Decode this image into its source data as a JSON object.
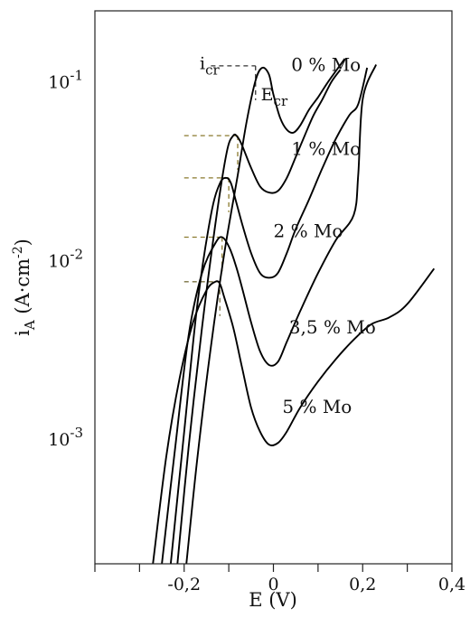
{
  "chart_data": {
    "type": "line",
    "xlabel": "E (V)",
    "ylabel": "iₐ",
    "y_axis_label": {
      "main": "i",
      "sub": "A",
      "unit_open": " (A·cm",
      "unit_sup": "-2",
      "unit_close": ")"
    },
    "x_scale": "linear",
    "y_scale": "log",
    "xlim": [
      -0.4,
      0.4
    ],
    "ylim": [
      0.0002,
      0.25
    ],
    "x_ticks": [
      -0.4,
      -0.3,
      -0.2,
      -0.1,
      0,
      0.1,
      0.2,
      0.3,
      0.4
    ],
    "x_tick_labels": [
      {
        "value": -0.2,
        "label": "-0,2"
      },
      {
        "value": 0,
        "label": "0"
      },
      {
        "value": 0.2,
        "label": "0,2"
      },
      {
        "value": 0.4,
        "label": "0,4"
      }
    ],
    "y_tick_labels": [
      {
        "value": 0.1,
        "base": "10",
        "exp": "-1"
      },
      {
        "value": 0.01,
        "base": "10",
        "exp": "-2"
      },
      {
        "value": 0.001,
        "base": "10",
        "exp": "-3"
      }
    ],
    "grid": false,
    "legend": "none",
    "series": [
      {
        "name": "0 % Mo",
        "x": [
          -0.195,
          -0.17,
          -0.14,
          -0.11,
          -0.08,
          -0.06,
          -0.04,
          -0.025,
          -0.01,
          0.0,
          0.015,
          0.03,
          0.045,
          0.06,
          0.08,
          0.1,
          0.12,
          0.14,
          0.16
        ],
        "y": [
          0.0002,
          0.0008,
          0.0033,
          0.011,
          0.03,
          0.06,
          0.102,
          0.12,
          0.11,
          0.085,
          0.063,
          0.054,
          0.052,
          0.057,
          0.07,
          0.082,
          0.098,
          0.115,
          0.135
        ]
      },
      {
        "name": "1 % Mo",
        "x": [
          -0.215,
          -0.19,
          -0.16,
          -0.13,
          -0.105,
          -0.09,
          -0.08,
          -0.07,
          -0.05,
          -0.03,
          -0.01,
          0.01,
          0.03,
          0.05,
          0.07,
          0.09,
          0.11,
          0.13,
          0.15
        ],
        "y": [
          0.0002,
          0.0009,
          0.0042,
          0.016,
          0.04,
          0.05,
          0.049,
          0.044,
          0.033,
          0.026,
          0.024,
          0.0245,
          0.029,
          0.038,
          0.05,
          0.065,
          0.08,
          0.1,
          0.117
        ]
      },
      {
        "name": "2 % Mo",
        "x": [
          -0.23,
          -0.2,
          -0.17,
          -0.14,
          -0.12,
          -0.105,
          -0.095,
          -0.085,
          -0.07,
          -0.05,
          -0.03,
          -0.01,
          0.01,
          0.03,
          0.05,
          0.08,
          0.11,
          0.14,
          0.17,
          0.19,
          0.21
        ],
        "y": [
          0.0002,
          0.0011,
          0.0058,
          0.018,
          0.027,
          0.029,
          0.027,
          0.022,
          0.016,
          0.011,
          0.0085,
          0.008,
          0.0085,
          0.011,
          0.015,
          0.022,
          0.033,
          0.048,
          0.065,
          0.075,
          0.12
        ]
      },
      {
        "name": "3,5 % Mo",
        "x": [
          -0.25,
          -0.22,
          -0.19,
          -0.16,
          -0.13,
          -0.115,
          -0.1,
          -0.085,
          -0.07,
          -0.05,
          -0.03,
          -0.01,
          0.01,
          0.03,
          0.06,
          0.1,
          0.14,
          0.18,
          0.19,
          0.2,
          0.23
        ],
        "y": [
          0.0002,
          0.0009,
          0.0038,
          0.0085,
          0.0125,
          0.0135,
          0.012,
          0.0095,
          0.007,
          0.0045,
          0.0031,
          0.0026,
          0.0027,
          0.0035,
          0.0052,
          0.0085,
          0.013,
          0.018,
          0.03,
          0.08,
          0.125
        ]
      },
      {
        "name": "5 % Mo",
        "x": [
          -0.27,
          -0.24,
          -0.21,
          -0.18,
          -0.15,
          -0.13,
          -0.12,
          -0.11,
          -0.09,
          -0.07,
          -0.05,
          -0.03,
          -0.01,
          0.01,
          0.03,
          0.06,
          0.1,
          0.14,
          0.18,
          0.22,
          0.26,
          0.3,
          0.36
        ],
        "y": [
          0.0002,
          0.0008,
          0.0022,
          0.0045,
          0.0068,
          0.0076,
          0.0074,
          0.0062,
          0.0042,
          0.0025,
          0.0015,
          0.0011,
          0.00093,
          0.00095,
          0.0011,
          0.0015,
          0.0021,
          0.0028,
          0.0036,
          0.0044,
          0.0048,
          0.0057,
          0.009
        ]
      }
    ],
    "series_labels": [
      {
        "text": "0 % Mo",
        "x": 0.04,
        "y": 0.115
      },
      {
        "text": "1 % Mo",
        "x": 0.04,
        "y": 0.039
      },
      {
        "text": "2 % Mo",
        "x": 0.0,
        "y": 0.0135
      },
      {
        "text": "3,5 % Mo",
        "x": 0.035,
        "y": 0.0039
      },
      {
        "text": "5 % Mo",
        "x": 0.02,
        "y": 0.0014
      }
    ],
    "annotations": [
      {
        "main": "i",
        "sub": "cr",
        "x": -0.165,
        "y": 0.118
      },
      {
        "main": "E",
        "sub": "cr",
        "x": -0.028,
        "y": 0.079
      }
    ],
    "critical_points": [
      {
        "x": -0.04,
        "y": 0.123,
        "h_from_x": -0.14,
        "dash_color": "#333333"
      },
      {
        "x": -0.08,
        "y": 0.05,
        "h_from_x": -0.2,
        "dash_color": "#8a7a2e"
      },
      {
        "x": -0.1,
        "y": 0.029,
        "h_from_x": -0.2,
        "dash_color": "#8a7a2e"
      },
      {
        "x": -0.115,
        "y": 0.0135,
        "h_from_x": -0.2,
        "dash_color": "#8a7a2e"
      },
      {
        "x": -0.12,
        "y": 0.0076,
        "h_from_x": -0.2,
        "dash_color": "#7a7040"
      }
    ]
  }
}
